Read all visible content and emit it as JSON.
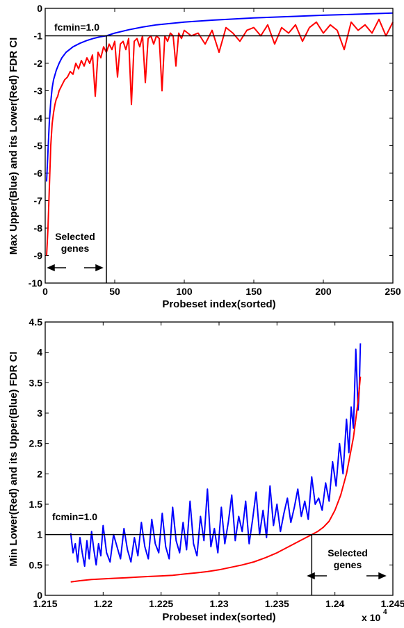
{
  "chart_data": [
    {
      "type": "line",
      "xlabel": "Probeset index(sorted)",
      "ylabel": "Max Upper(Blue) and its Lower(Red) FDR CI",
      "xlim": [
        0,
        250
      ],
      "ylim": [
        -10,
        0
      ],
      "xticks": [
        "0",
        "50",
        "100",
        "150",
        "200",
        "250"
      ],
      "yticks": [
        "0",
        "-1",
        "-2",
        "-3",
        "-4",
        "-5",
        "-6",
        "-7",
        "-8",
        "-9",
        "-10"
      ],
      "annotations": {
        "fcmin": "fcmin=1.0",
        "selected_line1": "Selected",
        "selected_line2": "genes"
      },
      "reference_hline": -1.0,
      "reference_vline": 44,
      "series": [
        {
          "color": "#0000ff",
          "x": [
            1,
            2,
            3,
            4,
            5,
            6,
            8,
            10,
            12,
            15,
            20,
            25,
            30,
            35,
            40,
            44,
            50,
            60,
            70,
            80,
            100,
            120,
            150,
            180,
            200,
            220,
            250
          ],
          "y": [
            -6.3,
            -5.2,
            -4.1,
            -3.4,
            -2.9,
            -2.6,
            -2.25,
            -2.0,
            -1.8,
            -1.6,
            -1.4,
            -1.27,
            -1.17,
            -1.09,
            -1.03,
            -1.0,
            -0.9,
            -0.78,
            -0.68,
            -0.6,
            -0.5,
            -0.43,
            -0.35,
            -0.29,
            -0.25,
            -0.22,
            -0.17
          ]
        },
        {
          "color": "#ff0000",
          "x": [
            1,
            2,
            3,
            4,
            5,
            6,
            7,
            8,
            9,
            10,
            12,
            14,
            16,
            18,
            20,
            22,
            24,
            26,
            28,
            30,
            32,
            34,
            36,
            38,
            40,
            42,
            44,
            46,
            48,
            50,
            52,
            54,
            56,
            58,
            60,
            62,
            64,
            66,
            68,
            70,
            72,
            74,
            76,
            78,
            80,
            82,
            84,
            86,
            88,
            90,
            92,
            94,
            96,
            98,
            100,
            105,
            110,
            115,
            120,
            125,
            130,
            135,
            140,
            145,
            150,
            155,
            160,
            165,
            170,
            175,
            180,
            185,
            190,
            195,
            200,
            205,
            210,
            215,
            220,
            225,
            230,
            235,
            240,
            245,
            250
          ],
          "y": [
            -9.0,
            -8.0,
            -6.5,
            -5.0,
            -4.2,
            -3.8,
            -3.5,
            -3.3,
            -3.2,
            -3.0,
            -2.8,
            -2.6,
            -2.5,
            -2.3,
            -2.4,
            -2.0,
            -2.2,
            -1.9,
            -2.1,
            -1.8,
            -2.0,
            -1.7,
            -3.2,
            -1.6,
            -1.8,
            -1.4,
            -1.6,
            -1.3,
            -1.5,
            -1.2,
            -2.5,
            -1.3,
            -1.2,
            -1.5,
            -1.1,
            -3.5,
            -1.2,
            -1.1,
            -1.4,
            -1.0,
            -2.7,
            -1.1,
            -1.0,
            -1.3,
            -1.0,
            -1.1,
            -3.0,
            -1.0,
            -1.2,
            -0.9,
            -1.0,
            -2.1,
            -0.9,
            -1.1,
            -0.8,
            -1.0,
            -0.9,
            -1.3,
            -0.8,
            -1.6,
            -0.7,
            -0.9,
            -1.2,
            -0.8,
            -0.7,
            -1.0,
            -0.6,
            -1.3,
            -0.7,
            -0.9,
            -0.6,
            -1.2,
            -0.7,
            -0.5,
            -0.9,
            -0.6,
            -0.8,
            -1.5,
            -0.5,
            -0.8,
            -0.6,
            -0.9,
            -0.4,
            -1.0,
            -0.5
          ]
        }
      ]
    },
    {
      "type": "line",
      "xlabel": "Probeset index(sorted)",
      "ylabel": "Min Lower(Red) and its Upper(Blue) FDR CI",
      "xlim": [
        1.215,
        1.245
      ],
      "ylim": [
        0,
        4.5
      ],
      "x_multiplier": "x 10",
      "x_multiplier_exp": "4",
      "xticks": [
        "1.215",
        "1.22",
        "1.225",
        "1.23",
        "1.235",
        "1.24",
        "1.245"
      ],
      "yticks": [
        "0",
        "0.5",
        "1",
        "1.5",
        "2",
        "2.5",
        "3",
        "3.5",
        "4",
        "4.5"
      ],
      "annotations": {
        "fcmin": "fcmin=1.0",
        "selected_line1": "Selected",
        "selected_line2": "genes"
      },
      "reference_hline": 1.0,
      "reference_vline": 1.238,
      "series": [
        {
          "color": "#0000ff",
          "x": [
            1.2172,
            1.2174,
            1.2176,
            1.2178,
            1.218,
            1.2182,
            1.2184,
            1.2186,
            1.2188,
            1.219,
            1.2192,
            1.2194,
            1.2196,
            1.2198,
            1.22,
            1.2203,
            1.2206,
            1.2209,
            1.2212,
            1.2215,
            1.2218,
            1.2221,
            1.2224,
            1.2227,
            1.223,
            1.2233,
            1.2236,
            1.2239,
            1.2242,
            1.2245,
            1.2248,
            1.2251,
            1.2254,
            1.2257,
            1.226,
            1.2263,
            1.2266,
            1.2269,
            1.2272,
            1.2275,
            1.2278,
            1.2281,
            1.2284,
            1.2287,
            1.229,
            1.2293,
            1.2296,
            1.2299,
            1.2302,
            1.2305,
            1.2308,
            1.2311,
            1.2314,
            1.2317,
            1.232,
            1.2323,
            1.2326,
            1.2329,
            1.2332,
            1.2335,
            1.2338,
            1.2341,
            1.2344,
            1.2347,
            1.235,
            1.2353,
            1.2356,
            1.2359,
            1.2362,
            1.2365,
            1.2368,
            1.2371,
            1.2374,
            1.2377,
            1.238,
            1.2383,
            1.2386,
            1.2389,
            1.2392,
            1.2395,
            1.2398,
            1.2401,
            1.2404,
            1.2407,
            1.241,
            1.2412,
            1.2414,
            1.2416,
            1.2418,
            1.242,
            1.2421,
            1.2422
          ],
          "y": [
            1.02,
            0.7,
            0.85,
            0.55,
            0.95,
            0.7,
            0.48,
            0.9,
            0.6,
            1.05,
            0.75,
            0.5,
            0.85,
            0.65,
            1.15,
            0.7,
            0.55,
            1.0,
            0.8,
            0.6,
            1.1,
            0.75,
            0.55,
            0.95,
            0.65,
            1.2,
            0.8,
            0.6,
            1.25,
            0.85,
            0.7,
            1.35,
            0.8,
            0.6,
            1.45,
            0.9,
            0.7,
            1.2,
            0.75,
            1.55,
            0.85,
            0.65,
            1.3,
            0.9,
            1.75,
            0.8,
            1.1,
            0.7,
            1.45,
            0.85,
            1.2,
            1.65,
            0.9,
            1.3,
            1.05,
            1.55,
            0.85,
            1.25,
            1.7,
            1.0,
            1.4,
            0.95,
            1.8,
            1.15,
            1.5,
            1.05,
            1.35,
            1.6,
            1.2,
            1.45,
            1.75,
            1.3,
            1.55,
            1.25,
            1.95,
            1.5,
            1.6,
            1.4,
            1.85,
            1.55,
            2.2,
            1.8,
            2.5,
            2.0,
            2.9,
            2.35,
            3.1,
            2.75,
            4.05,
            3.05,
            3.4,
            4.15
          ]
        },
        {
          "color": "#ff0000",
          "x": [
            1.2172,
            1.218,
            1.219,
            1.22,
            1.221,
            1.222,
            1.223,
            1.224,
            1.225,
            1.226,
            1.227,
            1.228,
            1.229,
            1.23,
            1.231,
            1.232,
            1.233,
            1.234,
            1.235,
            1.236,
            1.237,
            1.238,
            1.2385,
            1.239,
            1.2395,
            1.24,
            1.2405,
            1.241,
            1.2413,
            1.2416,
            1.2418,
            1.242,
            1.2422
          ],
          "y": [
            0.22,
            0.24,
            0.26,
            0.27,
            0.28,
            0.29,
            0.3,
            0.31,
            0.32,
            0.33,
            0.35,
            0.37,
            0.39,
            0.42,
            0.46,
            0.5,
            0.55,
            0.62,
            0.7,
            0.8,
            0.9,
            1.0,
            1.05,
            1.12,
            1.22,
            1.4,
            1.65,
            2.0,
            2.3,
            2.6,
            2.9,
            3.2,
            3.6
          ]
        }
      ]
    }
  ]
}
